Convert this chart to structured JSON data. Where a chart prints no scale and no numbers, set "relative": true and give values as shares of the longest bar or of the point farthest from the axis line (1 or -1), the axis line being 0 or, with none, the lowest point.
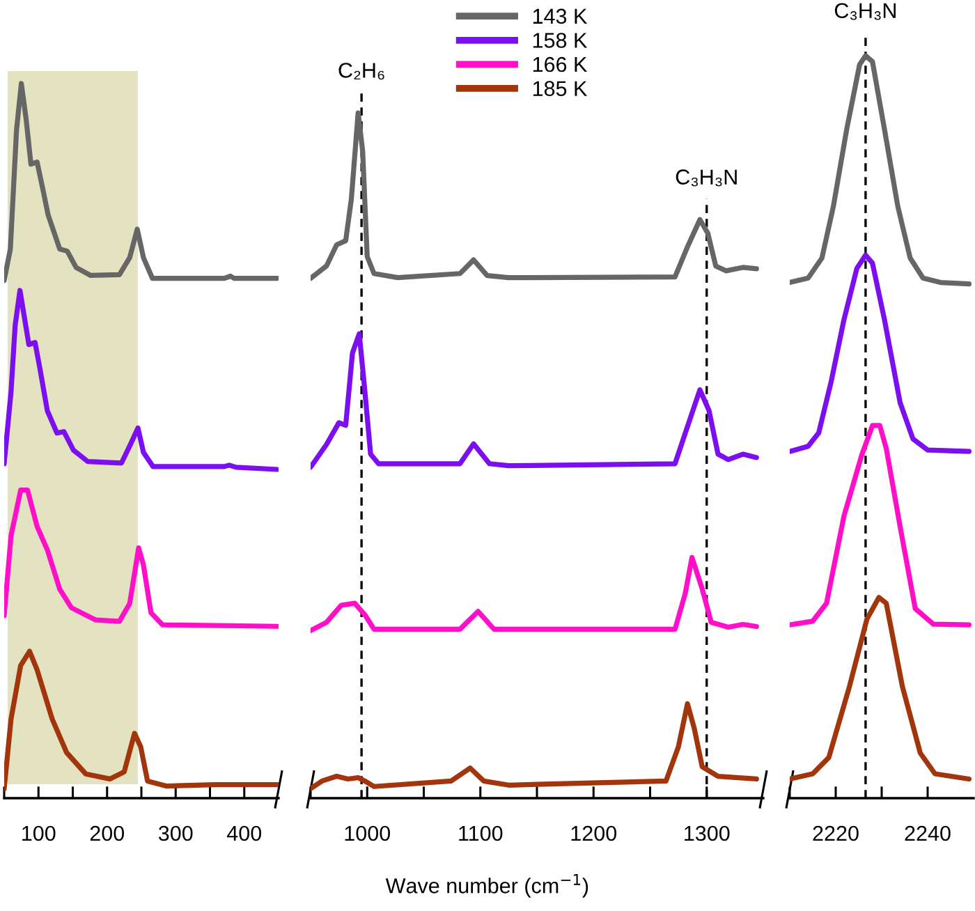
{
  "chart_data": [
    {
      "type": "line",
      "relative": true,
      "xlim": [
        50,
        450
      ],
      "xticks": [
        {
          "value": 50,
          "label": null
        },
        100,
        {
          "value": 150,
          "label": null
        },
        200,
        {
          "value": 250,
          "label": null
        },
        300,
        {
          "value": 350,
          "label": null
        },
        400
      ],
      "bands": [
        {
          "axis": "x",
          "from": 55,
          "to": 245,
          "color": "#e3e3c1"
        }
      ],
      "series": [
        {
          "color": "#666666",
          "x": [
            50,
            59,
            68,
            75,
            82,
            89,
            98,
            107,
            114,
            131,
            142,
            155,
            176,
            218,
            233,
            244,
            253,
            266,
            322,
            371,
            380,
            385,
            448
          ],
          "values": [
            0.724,
            0.768,
            0.935,
            1,
            0.95,
            0.887,
            0.89,
            0.849,
            0.816,
            0.768,
            0.765,
            0.742,
            0.731,
            0.732,
            0.756,
            0.796,
            0.756,
            0.727,
            0.727,
            0.727,
            0.73,
            0.727,
            0.727
          ]
        },
        {
          "color": "#7b0ff0",
          "x": [
            50,
            60,
            66,
            73,
            79,
            86,
            95,
            102,
            113,
            127,
            137,
            151,
            172,
            221,
            235,
            245,
            253,
            267,
            371,
            378,
            388,
            448
          ],
          "values": [
            0.467,
            0.568,
            0.661,
            0.71,
            0.675,
            0.634,
            0.637,
            0.601,
            0.541,
            0.51,
            0.512,
            0.486,
            0.47,
            0.468,
            0.496,
            0.517,
            0.483,
            0.463,
            0.463,
            0.465,
            0.462,
            0.459
          ]
        },
        {
          "color": "#ff10c8",
          "x": [
            50,
            60,
            74,
            84,
            98,
            113,
            131,
            148,
            183,
            218,
            233,
            246,
            253,
            264,
            281,
            448
          ],
          "values": [
            0.254,
            0.366,
            0.43,
            0.43,
            0.379,
            0.346,
            0.291,
            0.265,
            0.248,
            0.246,
            0.271,
            0.349,
            0.325,
            0.258,
            0.241,
            0.239
          ]
        },
        {
          "color": "#a3350c",
          "x": [
            50,
            60,
            74,
            87,
            98,
            120,
            141,
            169,
            204,
            225,
            240,
            249,
            259,
            287,
            357,
            448
          ],
          "values": [
            0.011,
            0.109,
            0.184,
            0.204,
            0.178,
            0.109,
            0.062,
            0.032,
            0.025,
            0.035,
            0.089,
            0.07,
            0.022,
            0.015,
            0.017,
            0.017
          ]
        }
      ]
    },
    {
      "type": "line",
      "relative": true,
      "xlim": [
        950,
        1350
      ],
      "xlabel": "Wave number (cm$^{−1}$)",
      "legend": "top",
      "xticks": [
        {
          "value": 950,
          "label": null
        },
        1000,
        {
          "value": 1050,
          "label": null
        },
        1100,
        {
          "value": 1150,
          "label": null
        },
        1200,
        {
          "value": 1250,
          "label": null
        },
        1300
      ],
      "ref_lines": [
        {
          "axis": "x",
          "value": 995,
          "label": "C₂H₆",
          "line_style": "dashed",
          "color": "#000000"
        },
        {
          "axis": "x",
          "value": 1300,
          "label": "C₃H₃N",
          "line_style": "dashed",
          "color": "#000000"
        }
      ],
      "series": [
        {
          "name": "143 K",
          "color": "#666666",
          "x": [
            950,
            964,
            973,
            981,
            986,
            992,
            996,
            1000,
            1006,
            1027,
            1082,
            1094,
            1106,
            1125,
            1272,
            1283,
            1294,
            1301,
            1308,
            1317,
            1332,
            1344
          ],
          "values": [
            0.758,
            0.776,
            0.807,
            0.813,
            0.874,
            1,
            0.944,
            0.79,
            0.765,
            0.759,
            0.765,
            0.785,
            0.762,
            0.759,
            0.76,
            0.804,
            0.844,
            0.824,
            0.776,
            0.769,
            0.774,
            0.772
          ]
        },
        {
          "name": "158 K",
          "color": "#7b0ff0",
          "x": [
            950,
            964,
            975,
            981,
            987,
            993,
            998,
            1003,
            1010,
            1082,
            1094,
            1108,
            1125,
            1272,
            1285,
            1294,
            1302,
            1310,
            1319,
            1332,
            1344
          ],
          "values": [
            0.482,
            0.515,
            0.547,
            0.543,
            0.649,
            0.677,
            0.592,
            0.501,
            0.487,
            0.487,
            0.516,
            0.487,
            0.484,
            0.487,
            0.551,
            0.595,
            0.565,
            0.501,
            0.493,
            0.501,
            0.496
          ]
        },
        {
          "name": "166 K",
          "color": "#ff10c8",
          "x": [
            950,
            964,
            977,
            989,
            998,
            1006,
            1082,
            1098,
            1112,
            1272,
            1281,
            1287,
            1296,
            1304,
            1319,
            1332,
            1344
          ],
          "values": [
            0.243,
            0.255,
            0.28,
            0.283,
            0.266,
            0.245,
            0.245,
            0.271,
            0.245,
            0.245,
            0.297,
            0.35,
            0.304,
            0.255,
            0.248,
            0.252,
            0.249
          ]
        },
        {
          "name": "185 K",
          "color": "#a3350c",
          "x": [
            950,
            960,
            973,
            983,
            992,
            998,
            1006,
            1074,
            1091,
            1103,
            1125,
            1264,
            1275,
            1283,
            1289,
            1296,
            1310,
            1344
          ],
          "values": [
            0.012,
            0.023,
            0.03,
            0.026,
            0.028,
            0.023,
            0.015,
            0.023,
            0.042,
            0.023,
            0.017,
            0.023,
            0.073,
            0.136,
            0.1,
            0.044,
            0.03,
            0.026
          ]
        }
      ]
    },
    {
      "type": "line",
      "relative": true,
      "xlim": [
        2210,
        2250
      ],
      "xticks": [
        {
          "value": 2210,
          "label": null
        },
        2220,
        {
          "value": 2230,
          "label": null
        },
        2240
      ],
      "ref_lines": [
        {
          "axis": "x",
          "value": 2226.5,
          "label": "C₃H₃N",
          "line_style": "dashed",
          "color": "#000000"
        }
      ],
      "series": [
        {
          "color": "#666666",
          "x": [
            2210,
            2214,
            2217,
            2219.5,
            2222.4,
            2225.2,
            2226.5,
            2228,
            2230.6,
            2233.5,
            2236.2,
            2239,
            2242.8,
            2249
          ],
          "values": [
            0.694,
            0.7,
            0.727,
            0.797,
            0.901,
            0.988,
            1.0,
            0.992,
            0.901,
            0.797,
            0.727,
            0.7,
            0.694,
            0.692
          ]
        },
        {
          "color": "#7b0ff0",
          "x": [
            2210,
            2214,
            2216.3,
            2219,
            2221.8,
            2224.6,
            2226.5,
            2228,
            2230.6,
            2234,
            2236.8,
            2240,
            2249
          ],
          "values": [
            0.466,
            0.473,
            0.491,
            0.56,
            0.644,
            0.713,
            0.731,
            0.72,
            0.644,
            0.532,
            0.483,
            0.468,
            0.466
          ]
        },
        {
          "color": "#ff10c8",
          "x": [
            2210,
            2215,
            2218,
            2221.8,
            2225.7,
            2228,
            2229.6,
            2231,
            2234,
            2237.3,
            2241.2,
            2249
          ],
          "values": [
            0.232,
            0.237,
            0.261,
            0.379,
            0.462,
            0.501,
            0.501,
            0.47,
            0.365,
            0.254,
            0.233,
            0.232
          ]
        },
        {
          "color": "#a3350c",
          "x": [
            2210,
            2215,
            2218.5,
            2223,
            2226.8,
            2229.4,
            2231,
            2234.5,
            2238.4,
            2241.6,
            2249
          ],
          "values": [
            0.024,
            0.031,
            0.053,
            0.149,
            0.24,
            0.269,
            0.261,
            0.149,
            0.059,
            0.031,
            0.024
          ]
        }
      ]
    }
  ]
}
